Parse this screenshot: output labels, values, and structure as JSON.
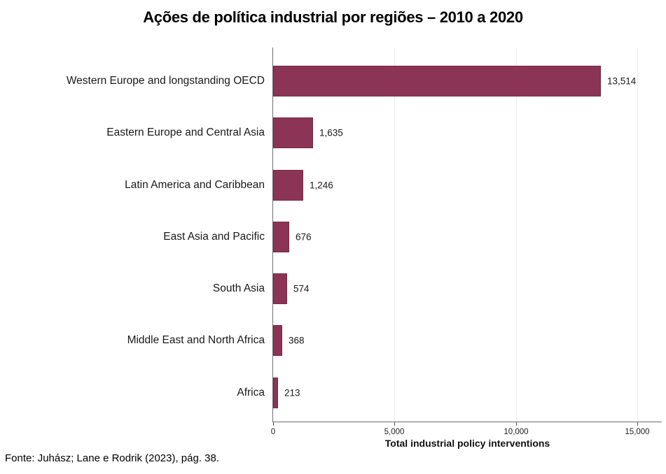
{
  "title": "Ações de política industrial por regiões – 2010 a 2020",
  "source": "Fonte: Juhász; Lane e Rodrik (2023), pág. 38.",
  "colors": {
    "bar": "#8b3455",
    "axis": "#6e6e6e",
    "tick": "#555555",
    "grid": "#ededed"
  },
  "chart_data": {
    "type": "bar",
    "orientation": "horizontal",
    "title": "Ações de política industrial por regiões – 2010 a 2020",
    "categories": [
      "Western Europe and longstanding OECD",
      "Eastern Europe and Central Asia",
      "Latin America and Caribbean",
      "East Asia and Pacific",
      "South Asia",
      "Middle East and North Africa",
      "Africa"
    ],
    "values": [
      13514,
      1635,
      1246,
      676,
      574,
      368,
      213
    ],
    "value_labels": [
      "13,514",
      "1,635",
      "1,246",
      "676",
      "574",
      "368",
      "213"
    ],
    "xlabel": "Total industrial policy interventions",
    "ylabel": "",
    "xlim": [
      0,
      15000
    ],
    "xticks": [
      0,
      5000,
      10000,
      15000
    ],
    "xtick_labels": [
      "0",
      "5,000",
      "10,000",
      "15,000"
    ],
    "grid": "vertical-gridlines-on",
    "legend": "none",
    "bar_color": "#8b3455"
  }
}
